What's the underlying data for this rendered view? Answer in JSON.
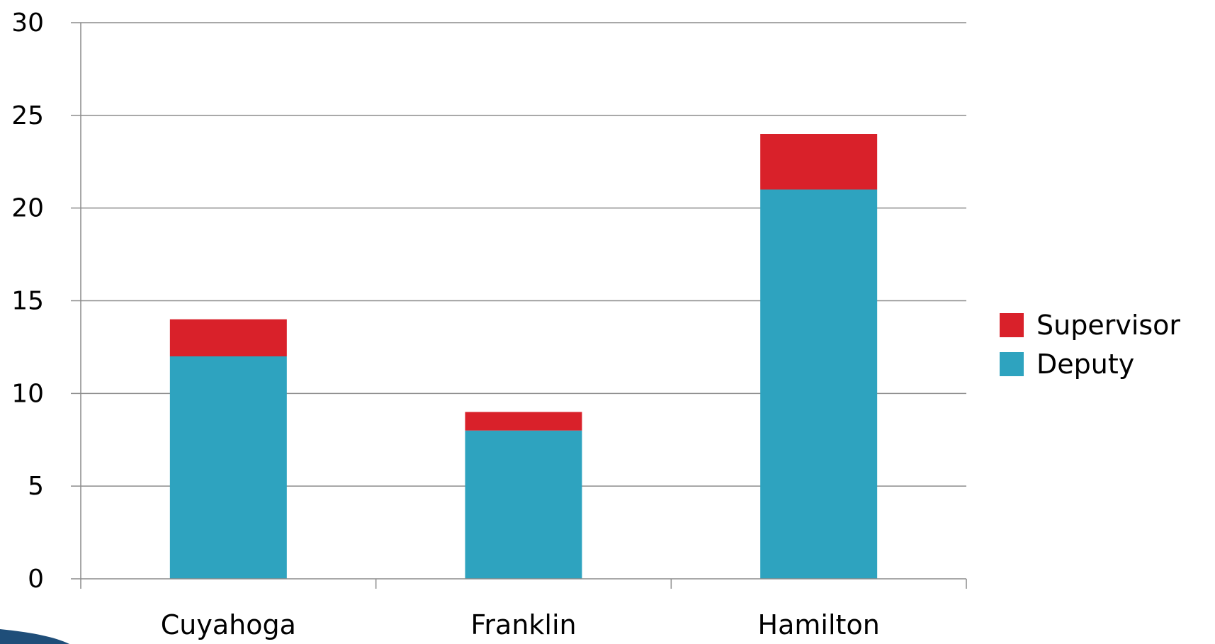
{
  "chart_data": {
    "type": "bar",
    "stacked": true,
    "categories": [
      "Cuyahoga",
      "Franklin",
      "Hamilton"
    ],
    "series": [
      {
        "name": "Deputy",
        "values": [
          12,
          8,
          21
        ],
        "color": "#2ea3bf"
      },
      {
        "name": "Supervisor",
        "values": [
          2,
          1,
          3
        ],
        "color": "#d9212a"
      }
    ],
    "ylim": [
      0,
      30
    ],
    "yticks": [
      0,
      5,
      10,
      15,
      20,
      25,
      30
    ],
    "grid": true,
    "legend_position": "right",
    "legend_order": [
      "Supervisor",
      "Deputy"
    ],
    "title": "",
    "xlabel": "",
    "ylabel": ""
  },
  "decoration": {
    "corner_swoosh_color": "#1f4e79"
  }
}
